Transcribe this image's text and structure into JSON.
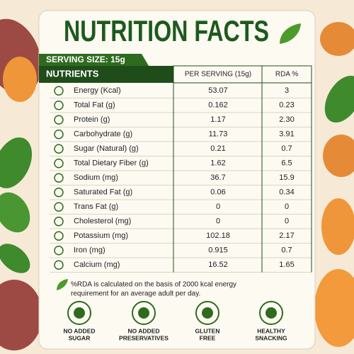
{
  "title": "NUTRITION FACTS",
  "serving_size": "SERVING SIZE: 15g",
  "table": {
    "header": [
      "NUTRIENTS",
      "PER SERVING (15g)",
      "RDA %"
    ],
    "rows": [
      [
        "Energy (Kcal)",
        "53.07",
        "3"
      ],
      [
        "Total Fat (g)",
        "0.162",
        "0.23"
      ],
      [
        "Protein (g)",
        "1.17",
        "2.30"
      ],
      [
        "Carbohydrate (g)",
        "11.73",
        "3.91"
      ],
      [
        "Sugar (Natural) (g)",
        "0.21",
        "0.7"
      ],
      [
        "Total Dietary Fiber (g)",
        "1.62",
        "6.5"
      ],
      [
        "Sodium (mg)",
        "36.7",
        "15.9"
      ],
      [
        "Saturated Fat (g)",
        "0.06",
        "0.34"
      ],
      [
        "Trans Fat (g)",
        "0",
        "0"
      ],
      [
        "Cholesterol (mg)",
        "0",
        "0"
      ],
      [
        "Potassium (mg)",
        "102.18",
        "2.17"
      ],
      [
        "Iron (mg)",
        "0.915",
        "0.7"
      ],
      [
        "Calcium (mg)",
        "16.52",
        "1.65"
      ]
    ]
  },
  "footnote": [
    "%RDA is calculated on the basis of 2000 kcal energy",
    "requirement for an average adult per day."
  ],
  "badges": [
    [
      "NO ADDED",
      "SUGAR"
    ],
    [
      "NO ADDED",
      "PRESERVATIVES"
    ],
    [
      "GLUTEN",
      "FREE"
    ],
    [
      "HEALTHY",
      "SNACKING"
    ]
  ]
}
